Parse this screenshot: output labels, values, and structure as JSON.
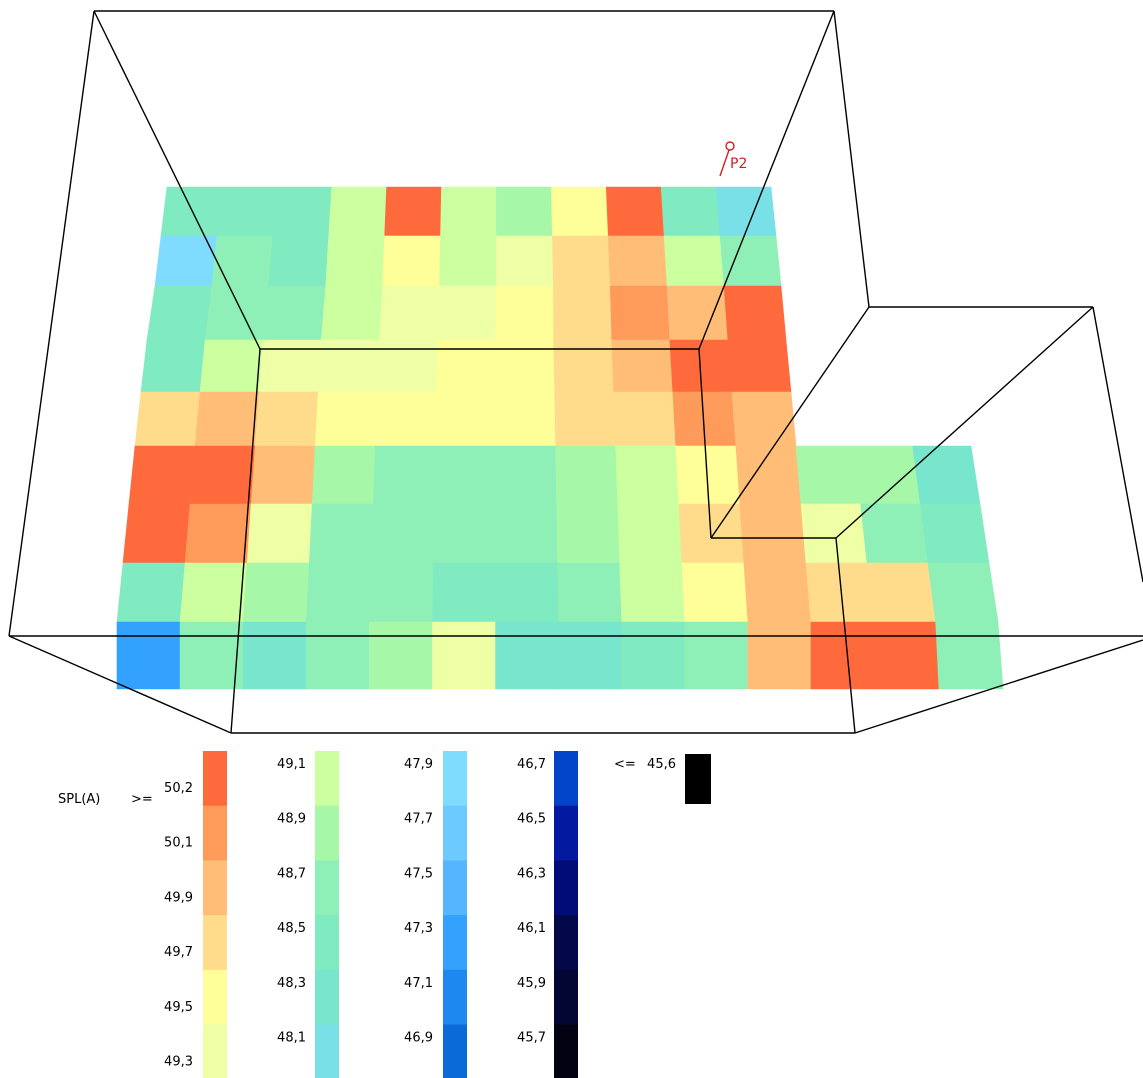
{
  "legend": {
    "title": "SPL(A)",
    "top_prefix": ">= ",
    "bottom_prefix": "<= ",
    "top_value": "50,2",
    "bottom_value": "45,6",
    "columns": [
      {
        "labels": [
          "50,2",
          "50,1",
          "49,9",
          "49,7",
          "49,5",
          "49,3"
        ],
        "colors": [
          "#ff6a3d",
          "#ff9b5a",
          "#ffbd78",
          "#ffdc8c",
          "#ffff99",
          "#eeffa6"
        ]
      },
      {
        "labels": [
          "49,1",
          "48,9",
          "48,7",
          "48,5",
          "48,3",
          "48,1"
        ],
        "colors": [
          "#ccffa0",
          "#a6f8a8",
          "#8ef0b6",
          "#80eac0",
          "#77e6cc",
          "#7ae0e8"
        ]
      },
      {
        "labels": [
          "47,9",
          "47,7",
          "47,5",
          "47,3",
          "47,1",
          "46,9"
        ],
        "colors": [
          "#80dcff",
          "#6ccaff",
          "#55b6ff",
          "#33a2ff",
          "#1c88f0",
          "#0a6ad8"
        ]
      },
      {
        "labels": [
          "46,7",
          "46,5",
          "46,3",
          "46,1",
          "45,9",
          "45,7"
        ],
        "colors": [
          "#0444c8",
          "#031aa0",
          "#020c78",
          "#020848",
          "#030532",
          "#020212"
        ]
      }
    ],
    "bottom_color": "#000000"
  },
  "marker": {
    "label": "P2",
    "color": "#cc2222"
  },
  "grid": {
    "main_rows": [
      [
        "48,5",
        "48,5",
        "48,5",
        "49,1",
        "50,2",
        "49,1",
        "48,9",
        "49,5",
        "50,2",
        "48,5",
        "48,1"
      ],
      [
        "47,9",
        "48,7",
        "48,5",
        "49,1",
        "49,5",
        "49,1",
        "49,3",
        "49,7",
        "49,9",
        "49,1",
        "48,7"
      ],
      [
        "48,5",
        "48,7",
        "48,7",
        "49,1",
        "49,3",
        "49,3",
        "49,5",
        "49,7",
        "50,1",
        "49,9",
        "50,2"
      ],
      [
        "48,5",
        "49,1",
        "49,3",
        "49,3",
        "49,3",
        "49,5",
        "49,5",
        "49,7",
        "49,9",
        "50,2",
        "50,2"
      ],
      [
        "49,7",
        "49,9",
        "49,7",
        "49,5",
        "49,5",
        "49,5",
        "49,5",
        "49,7",
        "49,7",
        "50,1",
        "49,9"
      ],
      [
        "50,2",
        "50,2",
        "49,9",
        "48,9",
        "48,7",
        "48,7",
        "48,7",
        "48,9",
        "49,1",
        "49,5",
        "49,9"
      ],
      [
        "50,2",
        "50,1",
        "49,3",
        "48,7",
        "48,7",
        "48,7",
        "48,7",
        "48,9",
        "49,1",
        "49,7",
        "49,9"
      ],
      [
        "48,5",
        "49,1",
        "48,9",
        "48,7",
        "48,7",
        "48,5",
        "48,5",
        "48,7",
        "49,1",
        "49,5",
        "49,9"
      ],
      [
        "47,3",
        "48,7",
        "48,3",
        "48,7",
        "48,9",
        "49,3",
        "48,3",
        "48,3",
        "48,5",
        "48,7",
        "49,9"
      ]
    ],
    "wing_rows": [
      [
        "48,9",
        "48,9",
        "48,3"
      ],
      [
        "49,3",
        "48,7",
        "48,5"
      ],
      [
        "49,7",
        "49,7",
        "48,7"
      ],
      [
        "50,2",
        "50,2",
        "48,7"
      ]
    ]
  }
}
